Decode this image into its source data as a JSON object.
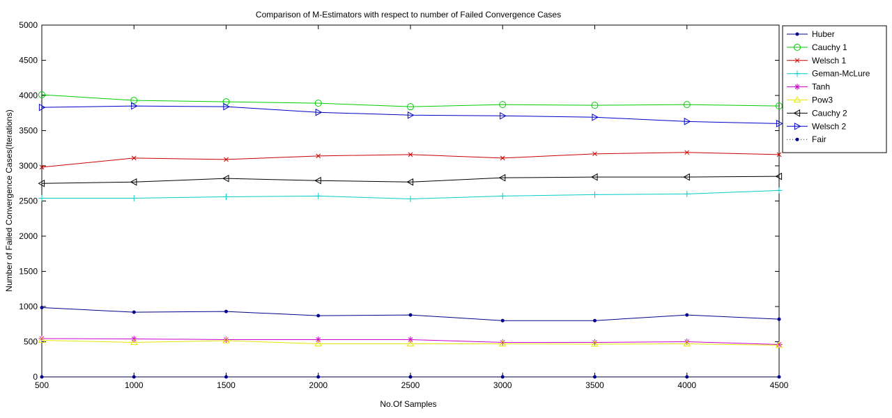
{
  "chart_data": {
    "type": "line",
    "title": "Comparison of M-Estimators with respect to number of Failed Convergence Cases",
    "xlabel": "No.Of Samples",
    "ylabel": "Number of Failed Convergence Cases(Iterations)",
    "xlim": [
      500,
      4500
    ],
    "ylim": [
      0,
      5000
    ],
    "x_ticks": [
      500,
      1000,
      1500,
      2000,
      2500,
      3000,
      3500,
      4000,
      4500
    ],
    "y_ticks": [
      0,
      500,
      1000,
      1500,
      2000,
      2500,
      3000,
      3500,
      4000,
      4500,
      5000
    ],
    "grid": false,
    "legend_position": "outside-top-right",
    "x": [
      500,
      1000,
      1500,
      2000,
      2500,
      3000,
      3500,
      4000,
      4500
    ],
    "series": [
      {
        "name": "Huber",
        "color": "#00008b",
        "marker": "dot",
        "line": "solid",
        "values": [
          985,
          920,
          930,
          870,
          880,
          800,
          800,
          880,
          820
        ]
      },
      {
        "name": "Cauchy 1",
        "color": "#00cc00",
        "marker": "circle",
        "line": "solid",
        "values": [
          4010,
          3930,
          3910,
          3890,
          3840,
          3870,
          3860,
          3870,
          3850
        ]
      },
      {
        "name": "Welsch 1",
        "color": "#cc0000",
        "marker": "x",
        "line": "solid",
        "values": [
          2980,
          3110,
          3090,
          3140,
          3160,
          3110,
          3170,
          3190,
          3160
        ]
      },
      {
        "name": "Geman-McLure",
        "color": "#00cccc",
        "marker": "plus",
        "line": "solid",
        "values": [
          2540,
          2540,
          2560,
          2570,
          2530,
          2570,
          2590,
          2600,
          2650
        ]
      },
      {
        "name": "Tanh",
        "color": "#cc00cc",
        "marker": "star",
        "line": "solid",
        "values": [
          545,
          540,
          530,
          530,
          530,
          490,
          490,
          500,
          460
        ]
      },
      {
        "name": "Pow3",
        "color": "#e6e600",
        "marker": "triangle-up",
        "line": "solid",
        "values": [
          520,
          490,
          515,
          470,
          470,
          470,
          465,
          470,
          450
        ]
      },
      {
        "name": "Cauchy 2",
        "color": "#000000",
        "marker": "triangle-left",
        "line": "solid",
        "values": [
          2750,
          2770,
          2820,
          2790,
          2770,
          2830,
          2840,
          2840,
          2850
        ]
      },
      {
        "name": "Welsch 2",
        "color": "#0000cc",
        "marker": "triangle-right",
        "line": "solid",
        "values": [
          3830,
          3850,
          3840,
          3760,
          3720,
          3710,
          3690,
          3630,
          3600
        ]
      },
      {
        "name": "Fair",
        "color": "#00008b",
        "marker": "dot",
        "line": "dotted",
        "values": [
          0,
          0,
          0,
          0,
          0,
          0,
          0,
          0,
          0
        ]
      }
    ]
  }
}
